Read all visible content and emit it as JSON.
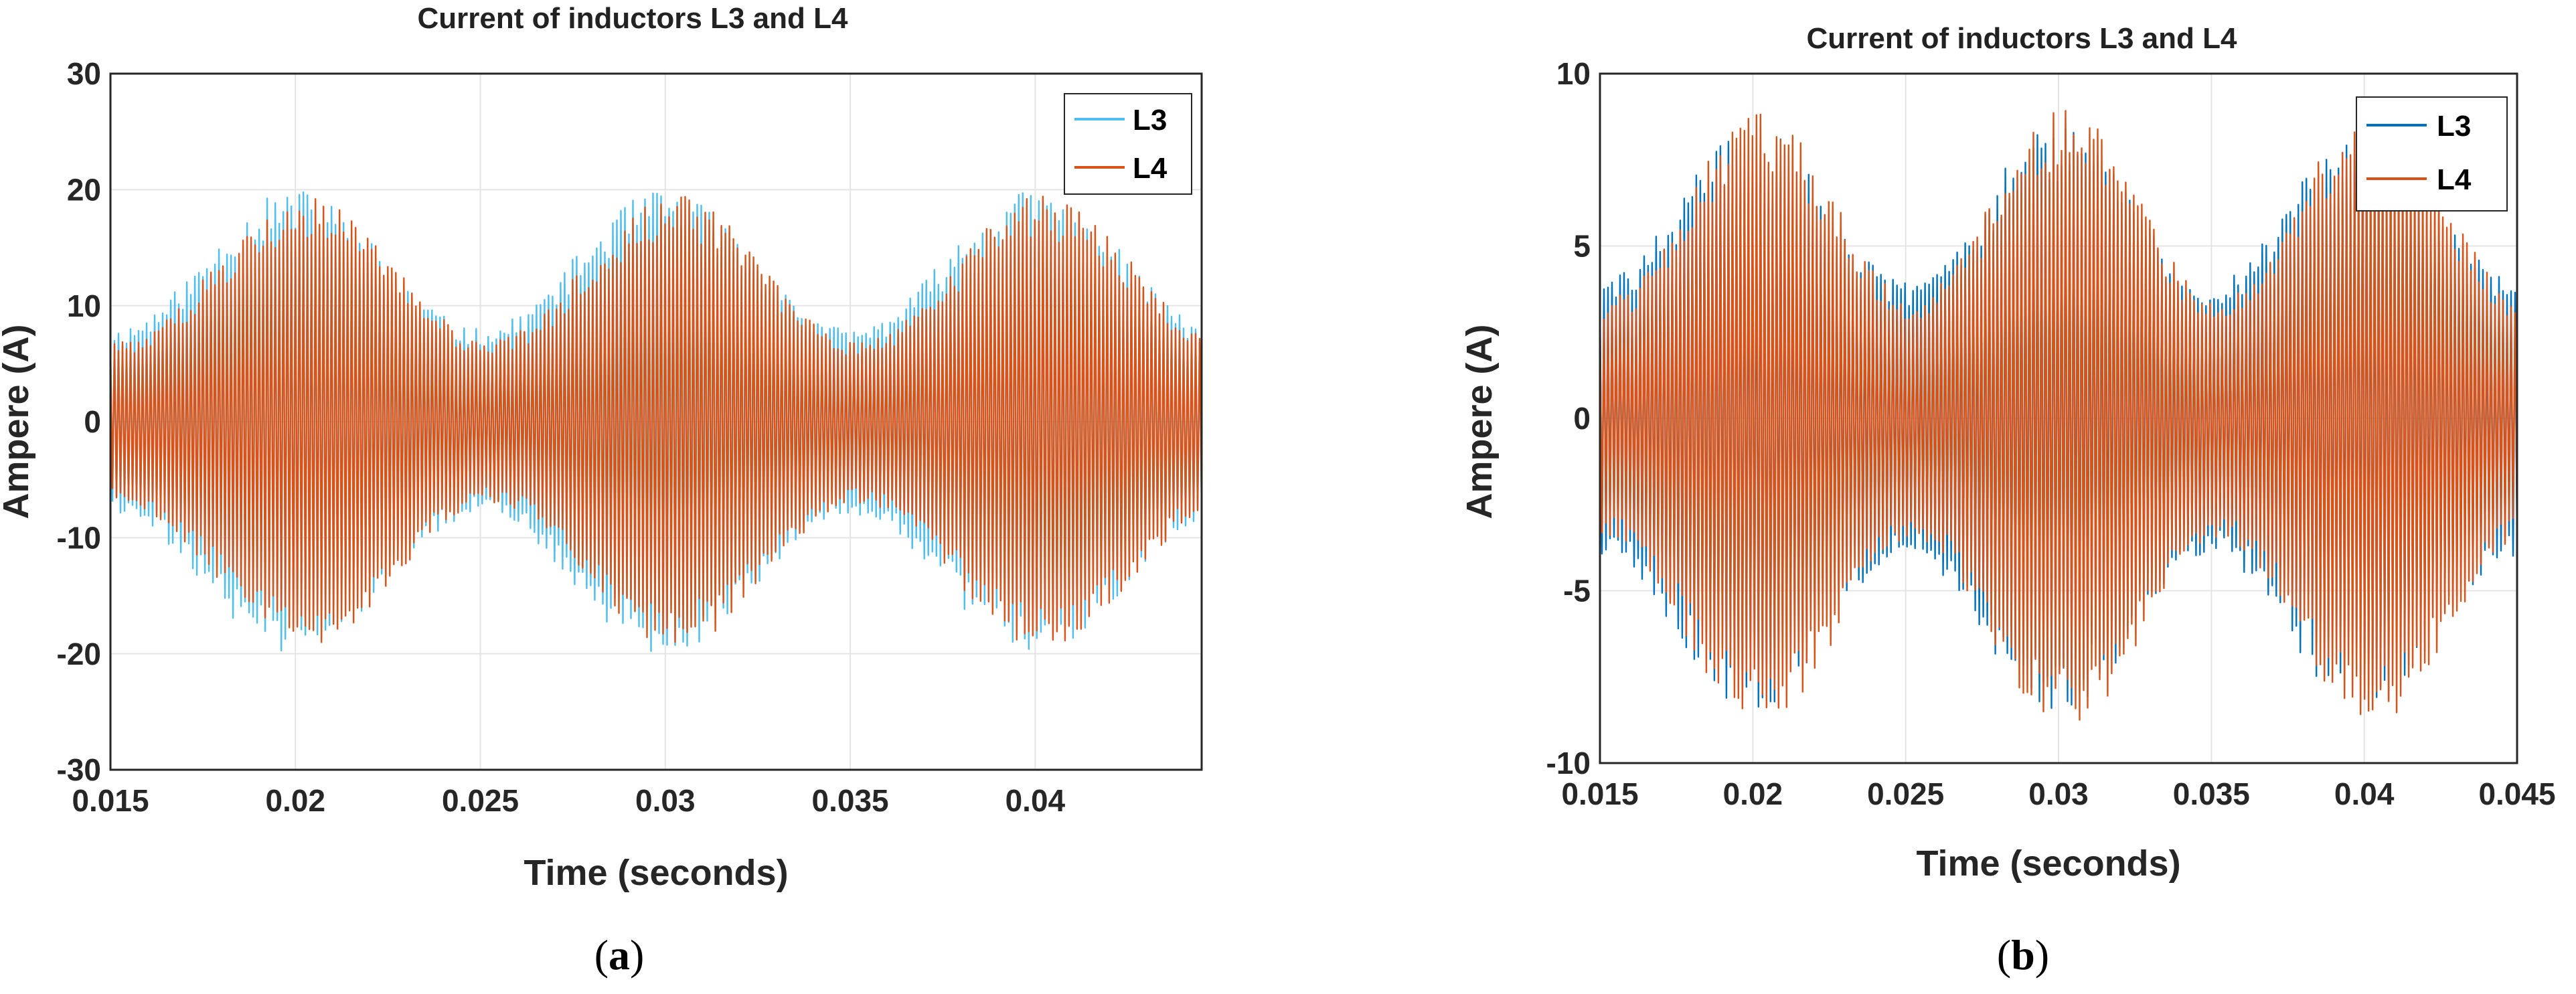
{
  "chart_data": [
    {
      "type": "line",
      "panel": "a",
      "title": "Current of inductors L3 and L4",
      "xlabel": "Time (seconds)",
      "ylabel": "Ampere (A)",
      "xlim": [
        0.015,
        0.0445
      ],
      "ylim": [
        -30,
        30
      ],
      "x_ticks": [
        0.015,
        0.02,
        0.025,
        0.03,
        0.035,
        0.04
      ],
      "x_tick_labels": [
        "0.015",
        "0.02",
        "0.025",
        "0.03",
        "0.035",
        "0.04"
      ],
      "y_ticks": [
        30,
        20,
        10,
        0,
        -10,
        -20,
        -30
      ],
      "y_tick_labels": [
        "30",
        "20",
        "10",
        "0",
        "-10",
        "-20",
        "-30"
      ],
      "grid": true,
      "legend_position": "top-right",
      "fundamental_frequency_hz": 100,
      "envelope_peak_times": [
        0.02,
        0.03,
        0.04
      ],
      "series": [
        {
          "name": "L3",
          "color": "#4DBEEE",
          "min_envelope": 8,
          "max_envelope": 20
        },
        {
          "name": "L4",
          "color": "#D95319",
          "min_envelope": 7,
          "max_envelope": 19.5
        }
      ]
    },
    {
      "type": "line",
      "panel": "b",
      "title": "Current of inductors L3 and L4",
      "xlabel": "Time (seconds)",
      "ylabel": "Ampere (A)",
      "xlim": [
        0.015,
        0.045
      ],
      "ylim": [
        -10,
        10
      ],
      "x_ticks": [
        0.015,
        0.02,
        0.025,
        0.03,
        0.035,
        0.04,
        0.045
      ],
      "x_tick_labels": [
        "0.015",
        "0.02",
        "0.025",
        "0.03",
        "0.035",
        "0.04",
        "0.045"
      ],
      "y_ticks": [
        10,
        5,
        0,
        -5,
        -10
      ],
      "y_tick_labels": [
        "10",
        "5",
        "0",
        "-5",
        "-10"
      ],
      "grid": true,
      "legend_position": "top-right",
      "fundamental_frequency_hz": 100,
      "envelope_peak_times": [
        0.02,
        0.03,
        0.04
      ],
      "series": [
        {
          "name": "L3",
          "color": "#0072BD",
          "min_envelope": 4,
          "max_envelope": 8.5
        },
        {
          "name": "L4",
          "color": "#D95319",
          "min_envelope": 3.5,
          "max_envelope": 9
        }
      ]
    }
  ],
  "captions": {
    "a": {
      "open": "(",
      "letter": "a",
      "close": ")"
    },
    "b": {
      "open": "(",
      "letter": "b",
      "close": ")"
    }
  }
}
